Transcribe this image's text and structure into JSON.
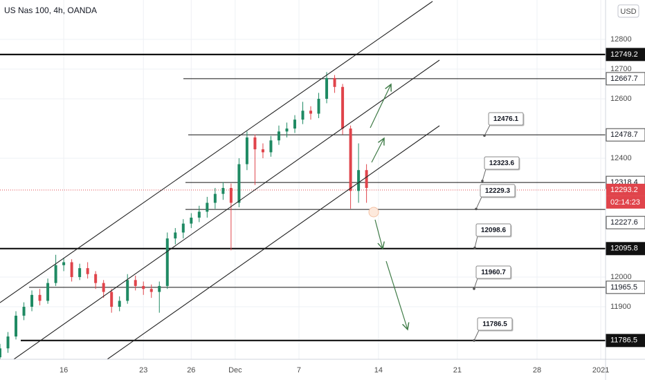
{
  "chart_data": {
    "type": "candlestick",
    "title": "US Nas 100, 4h, OANDA",
    "currency": "USD",
    "x": [
      -4,
      -3.5,
      -3,
      -2.5,
      -2,
      -1.5,
      -1,
      -0.5,
      0,
      0.5,
      1,
      1.5,
      2,
      2.5,
      3,
      3.5,
      4,
      4.5,
      5,
      5.5,
      6,
      6.5,
      7,
      7.5,
      8,
      8.5,
      9,
      9.5,
      10,
      10.5,
      11,
      11.5,
      12,
      12.5,
      13,
      13.5,
      14,
      14.5,
      15,
      15.5,
      16,
      16.5,
      17,
      17.5,
      18,
      18.5,
      19
    ],
    "open": [
      11730,
      11760,
      11800,
      11870,
      11900,
      11940,
      11920,
      11980,
      12040,
      12050,
      12000,
      12030,
      12010,
      11980,
      11950,
      11900,
      11920,
      11990,
      11970,
      11960,
      11950,
      11970,
      12130,
      12150,
      12180,
      12200,
      12220,
      12250,
      12280,
      12300,
      12250,
      12380,
      12470,
      12430,
      12420,
      12460,
      12490,
      12500,
      12530,
      12560,
      12550,
      12600,
      12670,
      12640,
      12500,
      12290,
      12360
    ],
    "high": [
      11775,
      11815,
      11885,
      11915,
      11955,
      11960,
      11995,
      12075,
      12065,
      12060,
      12045,
      12050,
      12020,
      11990,
      11960,
      11935,
      12010,
      12005,
      11985,
      11975,
      11985,
      12150,
      12165,
      12195,
      12215,
      12240,
      12270,
      12300,
      12320,
      12315,
      12400,
      12490,
      12480,
      12450,
      12475,
      12510,
      12520,
      12545,
      12590,
      12575,
      12620,
      12690,
      12680,
      12650,
      12510,
      12450,
      12380
    ],
    "low": [
      11715,
      11745,
      11790,
      11855,
      11885,
      11905,
      11910,
      11970,
      12020,
      11985,
      11990,
      11995,
      11960,
      11930,
      11880,
      11885,
      11910,
      11955,
      11940,
      11930,
      11880,
      11960,
      12110,
      12130,
      12165,
      12185,
      12200,
      12230,
      12260,
      12090,
      12235,
      12360,
      12310,
      12400,
      12405,
      12445,
      12470,
      12485,
      12515,
      12530,
      12535,
      12585,
      12620,
      12480,
      12230,
      12250,
      12250
    ],
    "close": [
      11760,
      11800,
      11870,
      11900,
      11940,
      11920,
      11980,
      12040,
      12050,
      12000,
      12030,
      12010,
      11980,
      11950,
      11900,
      11920,
      11990,
      11970,
      11960,
      11950,
      11970,
      12130,
      12150,
      12180,
      12200,
      12220,
      12250,
      12280,
      12300,
      12250,
      12380,
      12470,
      12430,
      12420,
      12460,
      12490,
      12500,
      12530,
      12560,
      12550,
      12600,
      12670,
      12640,
      12500,
      12290,
      12360,
      12300
    ],
    "up_color": "#1f8a63",
    "down_color": "#e0444b",
    "xlim": [
      -4,
      34
    ],
    "xticks": [
      {
        "value": 0,
        "label": "16"
      },
      {
        "value": 5,
        "label": "23"
      },
      {
        "value": 8,
        "label": "26"
      },
      {
        "value": 10.76,
        "label": "Dec"
      },
      {
        "value": 14.76,
        "label": "7"
      },
      {
        "value": 19.75,
        "label": "14"
      },
      {
        "value": 24.7,
        "label": "21"
      },
      {
        "value": 29.7,
        "label": "28"
      },
      {
        "value": 33.7,
        "label": "2021"
      }
    ],
    "ylim": [
      11723.3,
      12932.6
    ],
    "yticks": [
      12800,
      12700,
      12600,
      12400,
      12000,
      11900
    ],
    "grid": true,
    "levels": {
      "values": [
        12749.2,
        12667.7,
        12478.7,
        12318.4,
        12227.6,
        12095.8,
        11965.5,
        11786.5
      ],
      "thick": [
        true,
        false,
        false,
        false,
        false,
        true,
        false,
        true
      ]
    },
    "last_price": 12293.2,
    "last_price_color": "#e0444b",
    "countdown": "02:14:23",
    "callouts": [
      12476.1,
      12323.6,
      12229.3,
      12098.6,
      11960.7,
      11786.5
    ]
  }
}
